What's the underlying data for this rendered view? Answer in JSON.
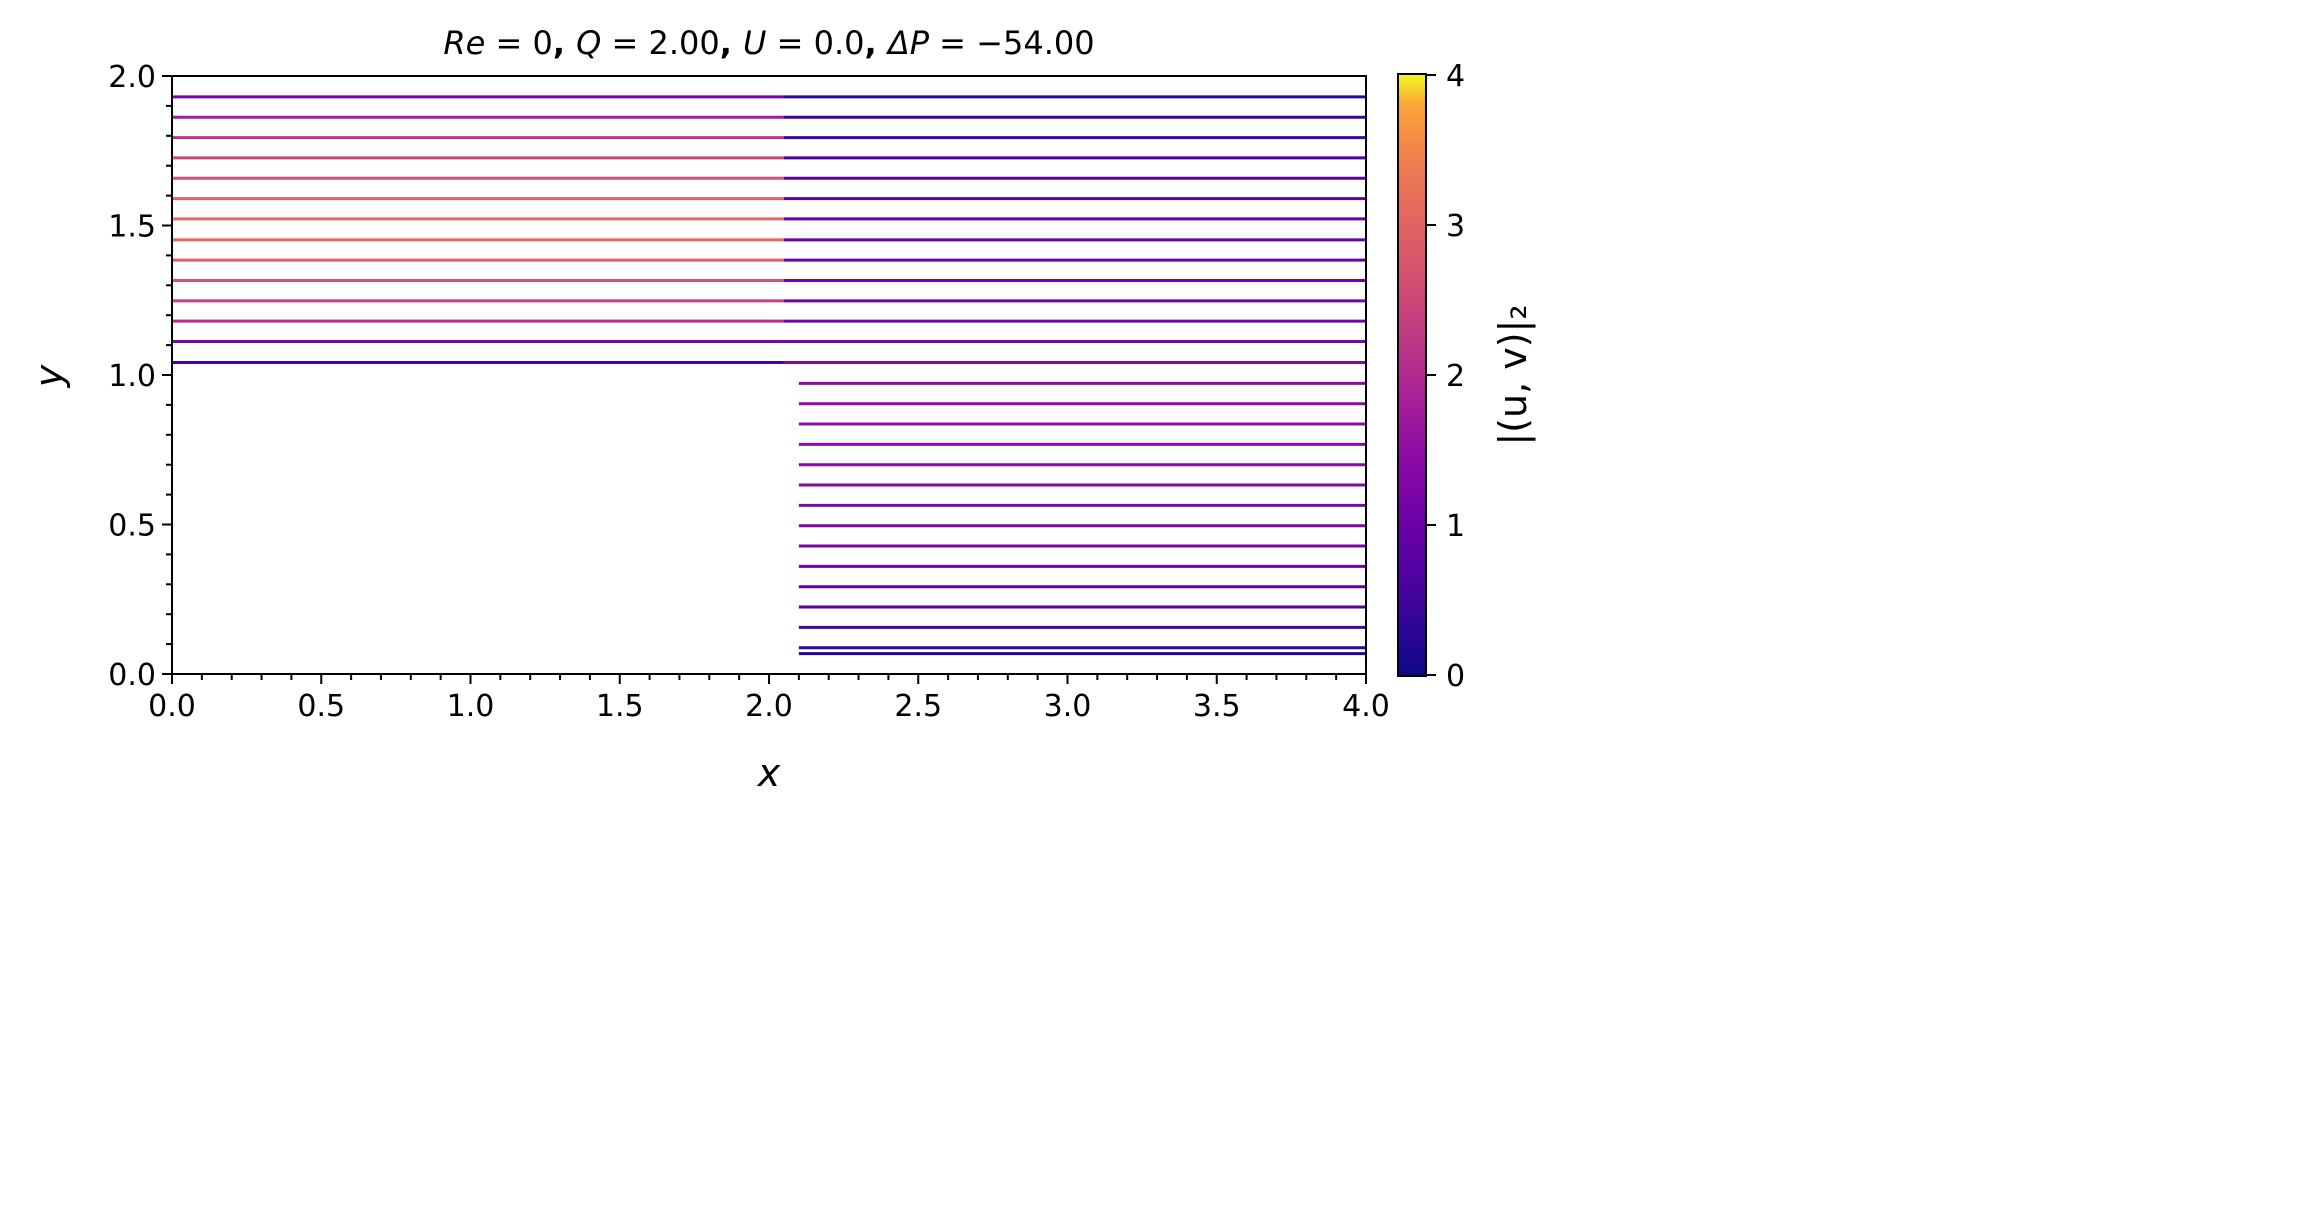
{
  "chart_data": {
    "type": "line",
    "title": {
      "re_sym": "Re",
      "re_val": " = 0",
      "q_sym": "Q",
      "q_val": " = 2.00",
      "u_sym": "U",
      "u_val": " = 0.0",
      "dp_sym": "ΔP",
      "dp_val": " = −54.00"
    },
    "xlabel": "x",
    "ylabel": "y",
    "xlim": [
      0,
      4
    ],
    "ylim": [
      0,
      2
    ],
    "xticks": [
      "0.0",
      "0.5",
      "1.0",
      "1.5",
      "2.0",
      "2.5",
      "3.0",
      "3.5",
      "4.0"
    ],
    "yticks": [
      "0.0",
      "0.5",
      "1.0",
      "1.5",
      "2.0"
    ],
    "colorbar": {
      "label": "|(u, v)|₂",
      "range": [
        0,
        4
      ],
      "ticks": [
        "0",
        "1",
        "2",
        "3",
        "4"
      ],
      "colormap": "plasma"
    },
    "upper_segment": {
      "x": [
        0.0,
        2.05
      ]
    },
    "upper_lines": [
      {
        "y": 1.93,
        "speed": 1.2
      },
      {
        "y": 1.862,
        "speed": 1.75
      },
      {
        "y": 1.794,
        "speed": 2.15
      },
      {
        "y": 1.726,
        "speed": 2.45
      },
      {
        "y": 1.658,
        "speed": 2.7
      },
      {
        "y": 1.59,
        "speed": 2.95
      },
      {
        "y": 1.522,
        "speed": 3.05
      },
      {
        "y": 1.452,
        "speed": 3.05
      },
      {
        "y": 1.384,
        "speed": 2.9
      },
      {
        "y": 1.316,
        "speed": 2.7
      },
      {
        "y": 1.248,
        "speed": 2.4
      },
      {
        "y": 1.18,
        "speed": 2.05
      },
      {
        "y": 1.112,
        "speed": 1.2
      },
      {
        "y": 1.042,
        "speed": 0.55
      }
    ],
    "right_lines_full": [
      {
        "y": 1.93,
        "speed": 0.3
      },
      {
        "y": 1.862,
        "speed": 0.4
      },
      {
        "y": 1.794,
        "speed": 0.55
      },
      {
        "y": 1.726,
        "speed": 0.65
      },
      {
        "y": 1.658,
        "speed": 0.75
      },
      {
        "y": 1.59,
        "speed": 0.85
      },
      {
        "y": 1.522,
        "speed": 0.9
      },
      {
        "y": 1.452,
        "speed": 0.95
      },
      {
        "y": 1.384,
        "speed": 1.0
      },
      {
        "y": 1.316,
        "speed": 1.05
      },
      {
        "y": 1.248,
        "speed": 1.1
      },
      {
        "y": 1.18,
        "speed": 1.15
      },
      {
        "y": 1.112,
        "speed": 1.2
      },
      {
        "y": 1.042,
        "speed": 1.3
      }
    ],
    "lower_segment": {
      "x": [
        2.1,
        4.0
      ]
    },
    "lower_lines": [
      {
        "y": 0.972,
        "speed": 1.45
      },
      {
        "y": 0.904,
        "speed": 1.5
      },
      {
        "y": 0.836,
        "speed": 1.5
      },
      {
        "y": 0.768,
        "speed": 1.45
      },
      {
        "y": 0.7,
        "speed": 1.42
      },
      {
        "y": 0.632,
        "speed": 1.38
      },
      {
        "y": 0.564,
        "speed": 1.32
      },
      {
        "y": 0.496,
        "speed": 1.25
      },
      {
        "y": 0.428,
        "speed": 1.15
      },
      {
        "y": 0.36,
        "speed": 1.05
      },
      {
        "y": 0.292,
        "speed": 0.9
      },
      {
        "y": 0.224,
        "speed": 0.75
      },
      {
        "y": 0.156,
        "speed": 0.55
      },
      {
        "y": 0.088,
        "speed": 0.3
      },
      {
        "y": 0.068,
        "speed": 0.15
      }
    ]
  }
}
